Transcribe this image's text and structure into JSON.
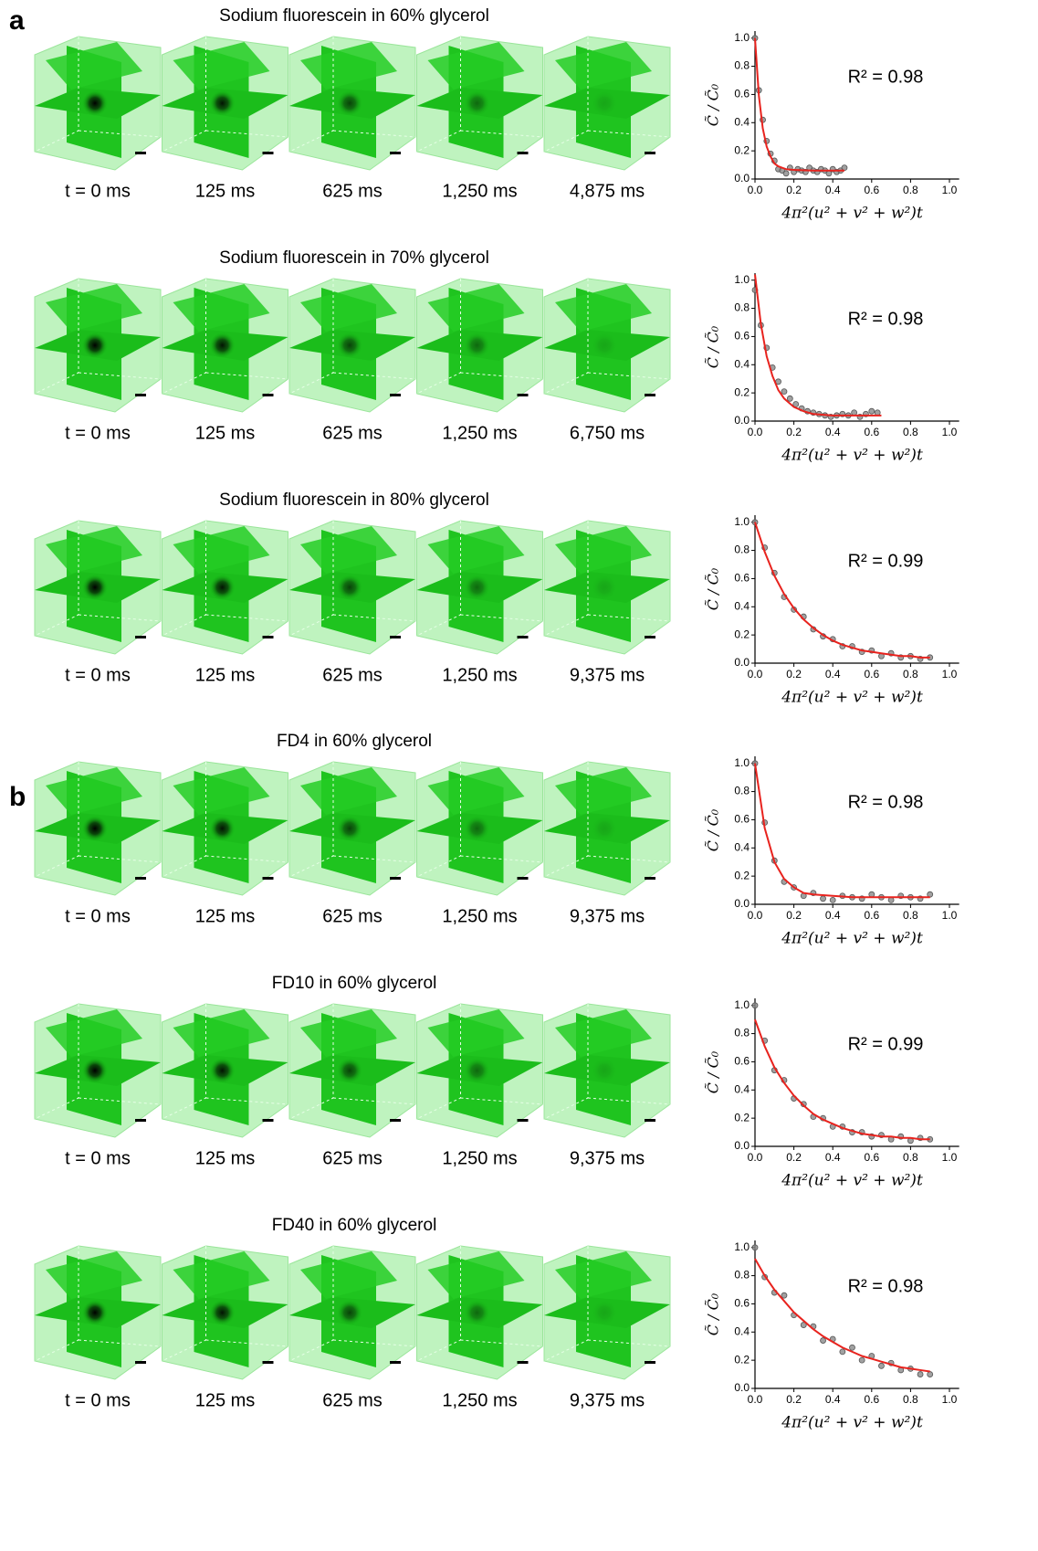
{
  "panel_labels": [
    "a",
    "b"
  ],
  "rows": [
    {
      "title": "Sodium fluorescein in 60% glycerol",
      "times": [
        "t = 0 ms",
        "125 ms",
        "625 ms",
        "1,250 ms",
        "4,875 ms"
      ]
    },
    {
      "title": "Sodium fluorescein in 70% glycerol",
      "times": [
        "t = 0 ms",
        "125 ms",
        "625 ms",
        "1,250 ms",
        "6,750 ms"
      ]
    },
    {
      "title": "Sodium fluorescein in 80% glycerol",
      "times": [
        "t = 0 ms",
        "125 ms",
        "625 ms",
        "1,250 ms",
        "9,375 ms"
      ]
    },
    {
      "title": "FD4 in 60% glycerol",
      "times": [
        "t = 0 ms",
        "125 ms",
        "625 ms",
        "1,250 ms",
        "9,375 ms"
      ]
    },
    {
      "title": "FD10 in 60% glycerol",
      "times": [
        "t = 0 ms",
        "125 ms",
        "625 ms",
        "1,250 ms",
        "9,375 ms"
      ]
    },
    {
      "title": "FD40 in 60% glycerol",
      "times": [
        "t = 0 ms",
        "125 ms",
        "625 ms",
        "1,250 ms",
        "9,375 ms"
      ]
    }
  ],
  "chart_data": [
    {
      "type": "scatter",
      "annotation": "R² = 0.98",
      "x_label": "4π²(u² + v² + w²)t",
      "y_label": "C̃ / C̃₀",
      "xlim": [
        0,
        1.05
      ],
      "ylim": [
        0,
        1.05
      ],
      "xticks": [
        {
          "value": 0,
          "label": "0.0"
        },
        0.2,
        0.4,
        0.6,
        0.8,
        {
          "value": 1,
          "label": "1.0"
        }
      ],
      "yticks": [
        {
          "value": 0,
          "label": "0.0"
        },
        0.2,
        0.4,
        0.6,
        0.8,
        {
          "value": 1,
          "label": "1.0"
        }
      ],
      "color": "#8a8a8a",
      "fit_color": "#e8231e",
      "x": [
        0,
        0.02,
        0.04,
        0.06,
        0.08,
        0.1,
        0.12,
        0.14,
        0.16,
        0.18,
        0.2,
        0.22,
        0.24,
        0.26,
        0.28,
        0.3,
        0.32,
        0.34,
        0.36,
        0.38,
        0.4,
        0.42,
        0.44,
        0.46
      ],
      "values": [
        1.0,
        0.63,
        0.42,
        0.27,
        0.18,
        0.13,
        0.07,
        0.06,
        0.04,
        0.08,
        0.05,
        0.07,
        0.06,
        0.05,
        0.08,
        0.06,
        0.05,
        0.07,
        0.06,
        0.04,
        0.07,
        0.05,
        0.06,
        0.08
      ],
      "fit_x": [
        0,
        0.02,
        0.04,
        0.06,
        0.08,
        0.1,
        0.12,
        0.14,
        0.16,
        0.2,
        0.3,
        0.4,
        0.46
      ],
      "fit_values": [
        1.0,
        0.59,
        0.36,
        0.23,
        0.16,
        0.11,
        0.09,
        0.08,
        0.07,
        0.065,
        0.06,
        0.06,
        0.06
      ]
    },
    {
      "type": "scatter",
      "annotation": "R² = 0.98",
      "x_label": "4π²(u² + v² + w²)t",
      "y_label": "C̃ / C̃₀",
      "xlim": [
        0,
        1.05
      ],
      "ylim": [
        0,
        1.05
      ],
      "xticks": [
        {
          "value": 0,
          "label": "0.0"
        },
        0.2,
        0.4,
        0.6,
        0.8,
        {
          "value": 1,
          "label": "1.0"
        }
      ],
      "yticks": [
        {
          "value": 0,
          "label": "0.0"
        },
        0.2,
        0.4,
        0.6,
        0.8,
        {
          "value": 1,
          "label": "1.0"
        }
      ],
      "color": "#8a8a8a",
      "fit_color": "#e8231e",
      "x": [
        0,
        0.03,
        0.06,
        0.09,
        0.12,
        0.15,
        0.18,
        0.21,
        0.24,
        0.27,
        0.3,
        0.33,
        0.36,
        0.39,
        0.42,
        0.45,
        0.48,
        0.51,
        0.54,
        0.57,
        0.6,
        0.63
      ],
      "values": [
        0.93,
        0.68,
        0.52,
        0.38,
        0.28,
        0.21,
        0.16,
        0.12,
        0.09,
        0.07,
        0.06,
        0.05,
        0.04,
        0.03,
        0.04,
        0.05,
        0.04,
        0.06,
        0.03,
        0.05,
        0.07,
        0.06
      ],
      "fit_x": [
        0,
        0.03,
        0.06,
        0.09,
        0.12,
        0.15,
        0.2,
        0.25,
        0.3,
        0.4,
        0.5,
        0.65
      ],
      "fit_values": [
        1.04,
        0.69,
        0.46,
        0.32,
        0.22,
        0.16,
        0.1,
        0.07,
        0.05,
        0.04,
        0.04,
        0.04
      ]
    },
    {
      "type": "scatter",
      "annotation": "R² = 0.99",
      "x_label": "4π²(u² + v² + w²)t",
      "y_label": "C̃ / C̃₀",
      "xlim": [
        0,
        1.05
      ],
      "ylim": [
        0,
        1.05
      ],
      "xticks": [
        {
          "value": 0,
          "label": "0.0"
        },
        0.2,
        0.4,
        0.6,
        0.8,
        {
          "value": 1,
          "label": "1.0"
        }
      ],
      "yticks": [
        {
          "value": 0,
          "label": "0.0"
        },
        0.2,
        0.4,
        0.6,
        0.8,
        {
          "value": 1,
          "label": "1.0"
        }
      ],
      "color": "#8a8a8a",
      "fit_color": "#e8231e",
      "x": [
        0,
        0.05,
        0.1,
        0.15,
        0.2,
        0.25,
        0.3,
        0.35,
        0.4,
        0.45,
        0.5,
        0.55,
        0.6,
        0.65,
        0.7,
        0.75,
        0.8,
        0.85,
        0.9
      ],
      "values": [
        1.0,
        0.82,
        0.64,
        0.47,
        0.38,
        0.33,
        0.24,
        0.19,
        0.17,
        0.12,
        0.12,
        0.08,
        0.09,
        0.05,
        0.07,
        0.04,
        0.05,
        0.03,
        0.04
      ],
      "fit_x": [
        0,
        0.05,
        0.1,
        0.15,
        0.2,
        0.25,
        0.3,
        0.35,
        0.4,
        0.45,
        0.5,
        0.55,
        0.6,
        0.65,
        0.7,
        0.75,
        0.8,
        0.85,
        0.9
      ],
      "fit_values": [
        1.0,
        0.79,
        0.62,
        0.49,
        0.39,
        0.31,
        0.25,
        0.2,
        0.16,
        0.13,
        0.11,
        0.09,
        0.08,
        0.07,
        0.06,
        0.05,
        0.05,
        0.04,
        0.04
      ]
    },
    {
      "type": "scatter",
      "annotation": "R² = 0.98",
      "x_label": "4π²(u² + v² + w²)t",
      "y_label": "C̃ / C̃₀",
      "xlim": [
        0,
        1.05
      ],
      "ylim": [
        0,
        1.05
      ],
      "xticks": [
        {
          "value": 0,
          "label": "0.0"
        },
        0.2,
        0.4,
        0.6,
        0.8,
        {
          "value": 1,
          "label": "1.0"
        }
      ],
      "yticks": [
        {
          "value": 0,
          "label": "0.0"
        },
        0.2,
        0.4,
        0.6,
        0.8,
        {
          "value": 1,
          "label": "1.0"
        }
      ],
      "color": "#8a8a8a",
      "fit_color": "#e8231e",
      "x": [
        0,
        0.05,
        0.1,
        0.15,
        0.2,
        0.25,
        0.3,
        0.35,
        0.4,
        0.45,
        0.5,
        0.55,
        0.6,
        0.65,
        0.7,
        0.75,
        0.8,
        0.85,
        0.9
      ],
      "values": [
        1.0,
        0.58,
        0.31,
        0.16,
        0.12,
        0.06,
        0.08,
        0.04,
        0.03,
        0.06,
        0.05,
        0.04,
        0.07,
        0.05,
        0.03,
        0.06,
        0.05,
        0.04,
        0.07
      ],
      "fit_x": [
        0,
        0.05,
        0.1,
        0.15,
        0.2,
        0.25,
        0.3,
        0.4,
        0.5,
        0.6,
        0.7,
        0.8,
        0.9
      ],
      "fit_values": [
        1.0,
        0.54,
        0.3,
        0.18,
        0.12,
        0.08,
        0.07,
        0.06,
        0.05,
        0.05,
        0.05,
        0.05,
        0.05
      ]
    },
    {
      "type": "scatter",
      "annotation": "R² = 0.99",
      "x_label": "4π²(u² + v² + w²)t",
      "y_label": "C̃ / C̃₀",
      "xlim": [
        0,
        1.05
      ],
      "ylim": [
        0,
        1.05
      ],
      "xticks": [
        {
          "value": 0,
          "label": "0.0"
        },
        0.2,
        0.4,
        0.6,
        0.8,
        {
          "value": 1,
          "label": "1.0"
        }
      ],
      "yticks": [
        {
          "value": 0,
          "label": "0.0"
        },
        0.2,
        0.4,
        0.6,
        0.8,
        {
          "value": 1,
          "label": "1.0"
        }
      ],
      "color": "#8a8a8a",
      "fit_color": "#e8231e",
      "x": [
        0,
        0.05,
        0.1,
        0.15,
        0.2,
        0.25,
        0.3,
        0.35,
        0.4,
        0.45,
        0.5,
        0.55,
        0.6,
        0.65,
        0.7,
        0.75,
        0.8,
        0.85,
        0.9
      ],
      "values": [
        1.0,
        0.75,
        0.54,
        0.47,
        0.34,
        0.3,
        0.21,
        0.2,
        0.14,
        0.14,
        0.1,
        0.1,
        0.07,
        0.08,
        0.05,
        0.07,
        0.04,
        0.06,
        0.05
      ],
      "fit_x": [
        0,
        0.05,
        0.1,
        0.15,
        0.2,
        0.25,
        0.3,
        0.35,
        0.4,
        0.45,
        0.5,
        0.55,
        0.6,
        0.65,
        0.7,
        0.75,
        0.8,
        0.85,
        0.9
      ],
      "fit_values": [
        0.9,
        0.71,
        0.56,
        0.45,
        0.36,
        0.29,
        0.23,
        0.19,
        0.16,
        0.13,
        0.11,
        0.09,
        0.08,
        0.07,
        0.07,
        0.06,
        0.06,
        0.05,
        0.05
      ]
    },
    {
      "type": "scatter",
      "annotation": "R² = 0.98",
      "x_label": "4π²(u² + v² + w²)t",
      "y_label": "C̃ / C̃₀",
      "xlim": [
        0,
        1.05
      ],
      "ylim": [
        0,
        1.05
      ],
      "xticks": [
        {
          "value": 0,
          "label": "0.0"
        },
        0.2,
        0.4,
        0.6,
        0.8,
        {
          "value": 1,
          "label": "1.0"
        }
      ],
      "yticks": [
        {
          "value": 0,
          "label": "0.0"
        },
        0.2,
        0.4,
        0.6,
        0.8,
        {
          "value": 1,
          "label": "1.0"
        }
      ],
      "color": "#8a8a8a",
      "fit_color": "#e8231e",
      "x": [
        0,
        0.05,
        0.1,
        0.15,
        0.2,
        0.25,
        0.3,
        0.35,
        0.4,
        0.45,
        0.5,
        0.55,
        0.6,
        0.65,
        0.7,
        0.75,
        0.8,
        0.85,
        0.9
      ],
      "values": [
        1.0,
        0.79,
        0.68,
        0.66,
        0.52,
        0.45,
        0.44,
        0.34,
        0.35,
        0.26,
        0.29,
        0.2,
        0.23,
        0.16,
        0.18,
        0.13,
        0.14,
        0.1,
        0.1
      ],
      "fit_x": [
        0,
        0.05,
        0.1,
        0.15,
        0.2,
        0.25,
        0.3,
        0.35,
        0.4,
        0.45,
        0.5,
        0.55,
        0.6,
        0.65,
        0.7,
        0.75,
        0.8,
        0.85,
        0.9
      ],
      "fit_values": [
        0.92,
        0.8,
        0.7,
        0.62,
        0.54,
        0.48,
        0.42,
        0.37,
        0.33,
        0.29,
        0.26,
        0.23,
        0.21,
        0.19,
        0.17,
        0.15,
        0.14,
        0.13,
        0.12
      ]
    }
  ]
}
